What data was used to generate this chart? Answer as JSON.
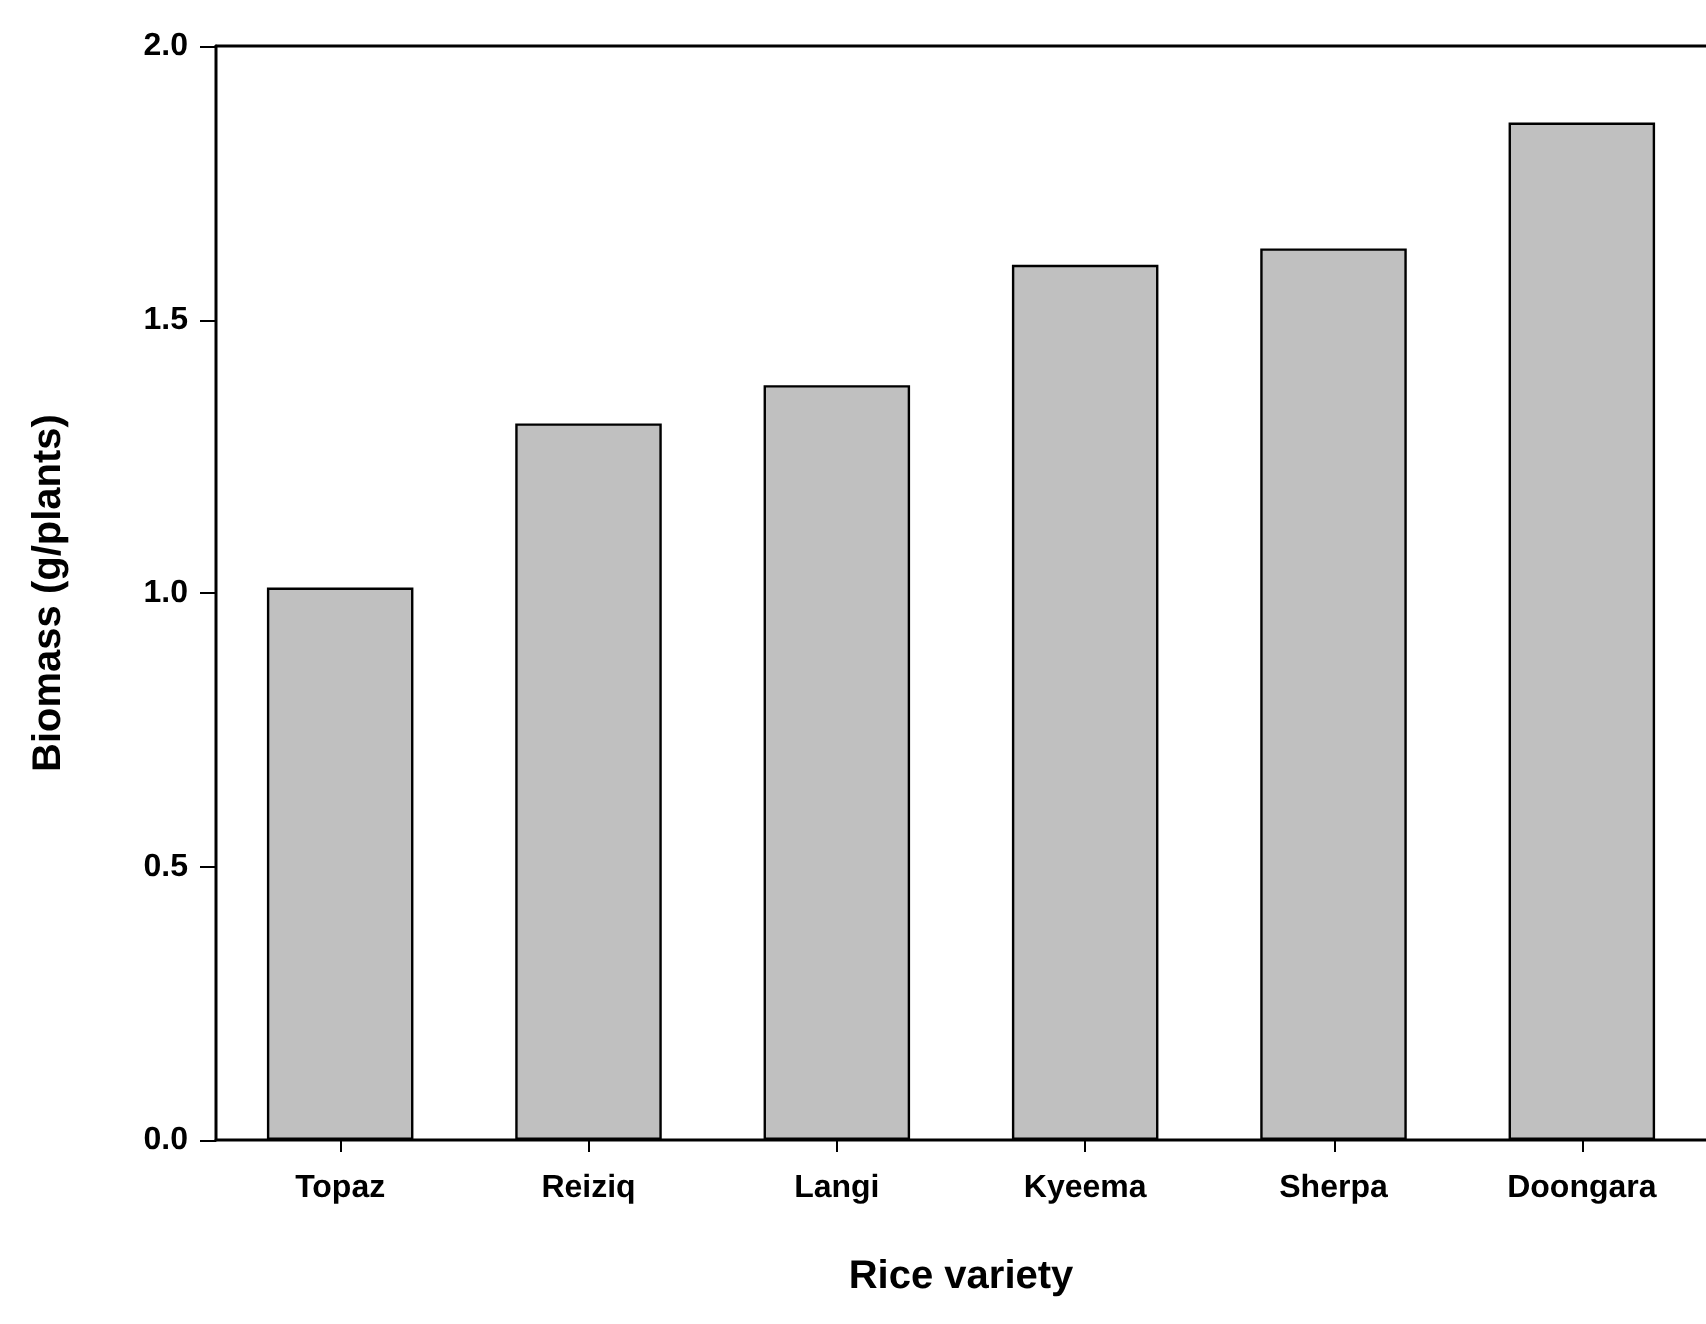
{
  "chart_data": {
    "type": "bar",
    "xlabel": "Rice variety",
    "ylabel": "Biomass (g/plants)",
    "categories": [
      "Topaz",
      "Reiziq",
      "Langi",
      "Kyeema",
      "Sherpa",
      "Doongara"
    ],
    "values": [
      1.01,
      1.31,
      1.38,
      1.6,
      1.63,
      1.86
    ],
    "color": "#c0c0c0",
    "ylim": [
      0,
      2
    ],
    "yticks": [
      {
        "value": 0,
        "label": "0.0"
      },
      {
        "value": 0.5,
        "label": "0.5"
      },
      {
        "value": 1,
        "label": "1.0"
      },
      {
        "value": 1.5,
        "label": "1.5"
      },
      {
        "value": 2,
        "label": "2.0"
      }
    ],
    "grid": false
  }
}
